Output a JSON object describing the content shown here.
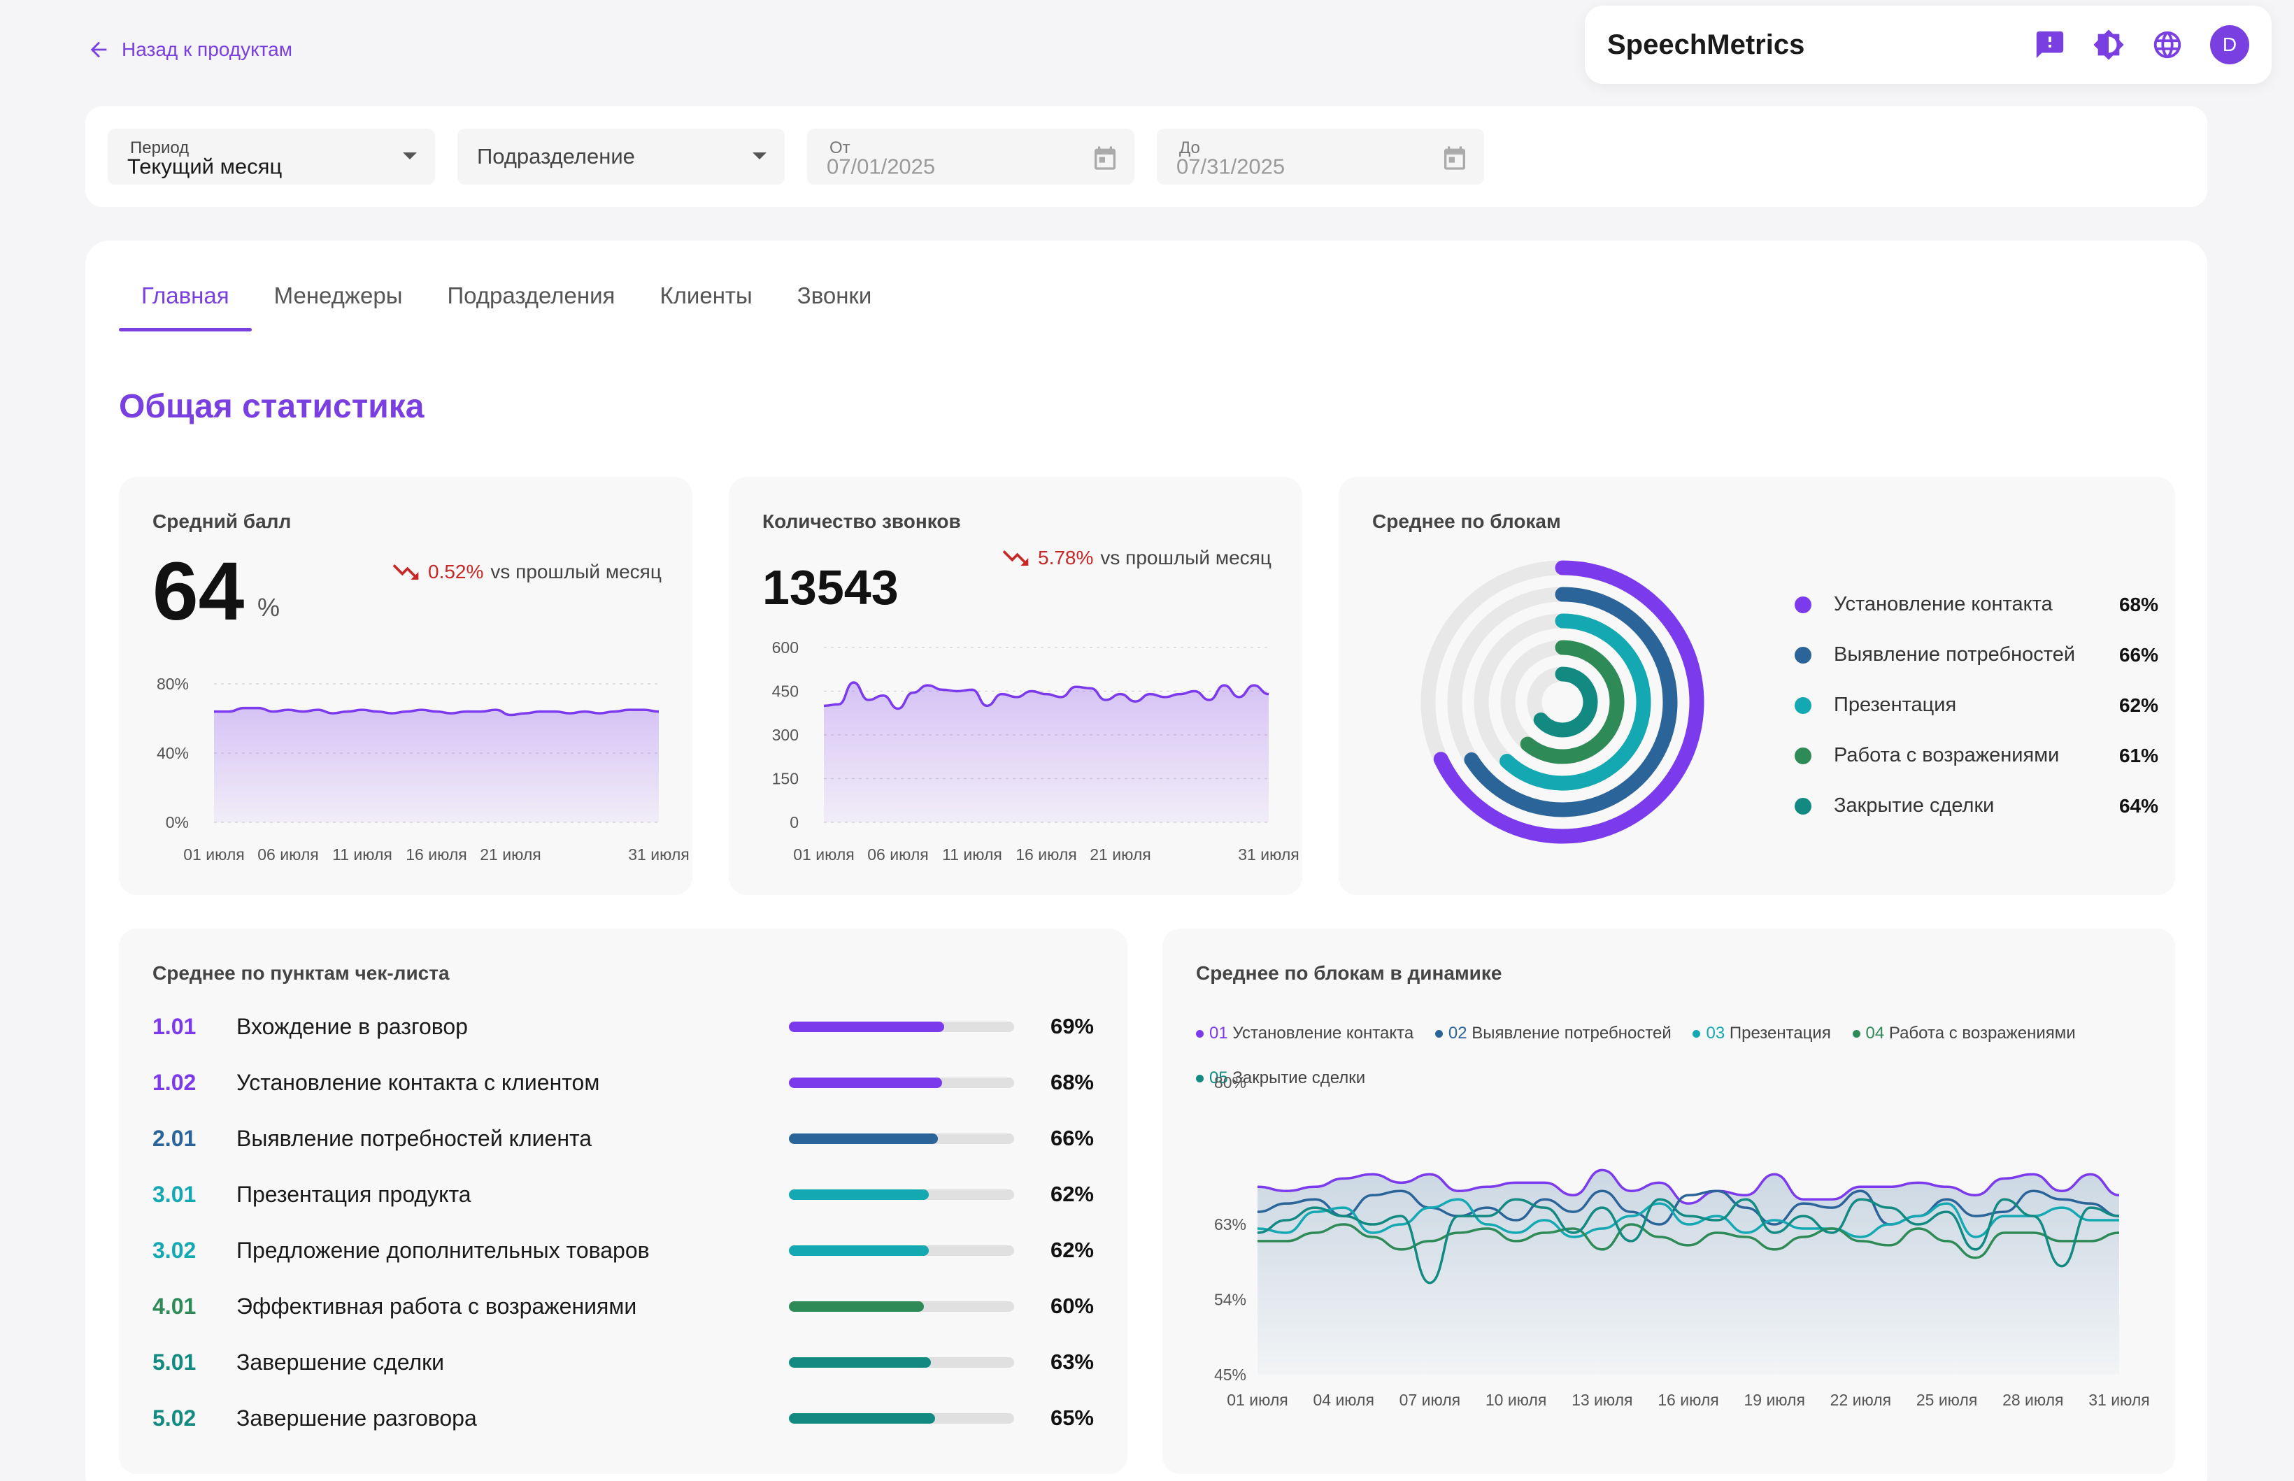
{
  "header": {
    "back_label": "Назад к продуктам",
    "brand": "SpeechMetrics",
    "icons": [
      "feedback-icon",
      "theme-icon",
      "language-icon"
    ],
    "avatar_letter": "D"
  },
  "filters": {
    "period_label": "Период",
    "period_value": "Текущий месяц",
    "division_value": "Подразделение",
    "from_label": "От",
    "from_value": "07/01/2025",
    "to_label": "До",
    "to_value": "07/31/2025"
  },
  "tabs": [
    "Главная",
    "Менеджеры",
    "Подразделения",
    "Клиенты",
    "Звонки"
  ],
  "active_tab": "Главная",
  "section_title": "Общая статистика",
  "colors": {
    "accent": "#7a3fe0",
    "block1": "#7c3aed",
    "block2": "#2b6499",
    "block3": "#13a8b2",
    "block4": "#2e8b57",
    "block5": "#128a82",
    "negative": "#c62828"
  },
  "avg_score": {
    "title": "Средний балл",
    "value": "64",
    "unit": "%",
    "trend_pct": "0.52%",
    "trend_text": "vs прошлый месяц"
  },
  "calls_count": {
    "title": "Количество звонков",
    "value": "13543",
    "trend_pct": "5.78%",
    "trend_text": "vs прошлый месяц"
  },
  "blocks_avg": {
    "title": "Среднее по блокам",
    "items": [
      {
        "name": "Установление контакта",
        "value": "68%"
      },
      {
        "name": "Выявление потребностей",
        "value": "66%"
      },
      {
        "name": "Презентация",
        "value": "62%"
      },
      {
        "name": "Работа с возражениями",
        "value": "61%"
      },
      {
        "name": "Закрытие сделки",
        "value": "64%"
      }
    ]
  },
  "checklist": {
    "title": "Среднее по пунктам чек-листа",
    "items": [
      {
        "code": "1.01",
        "name": "Вхождение в разговор",
        "value": "69%",
        "fill": 0.69,
        "color": "#7c3aed"
      },
      {
        "code": "1.02",
        "name": "Установление контакта с клиентом",
        "value": "68%",
        "fill": 0.68,
        "color": "#7c3aed"
      },
      {
        "code": "2.01",
        "name": "Выявление потребностей клиента",
        "value": "66%",
        "fill": 0.66,
        "color": "#2b6499"
      },
      {
        "code": "3.01",
        "name": "Презентация продукта",
        "value": "62%",
        "fill": 0.62,
        "color": "#13a8b2"
      },
      {
        "code": "3.02",
        "name": "Предложение дополнительных товаров",
        "value": "62%",
        "fill": 0.62,
        "color": "#13a8b2"
      },
      {
        "code": "4.01",
        "name": "Эффективная работа с возражениями",
        "value": "60%",
        "fill": 0.6,
        "color": "#2e8b57"
      },
      {
        "code": "5.01",
        "name": "Завершение сделки",
        "value": "63%",
        "fill": 0.63,
        "color": "#128a82"
      },
      {
        "code": "5.02",
        "name": "Завершение разговора",
        "value": "65%",
        "fill": 0.65,
        "color": "#128a82"
      }
    ]
  },
  "dynamics": {
    "title": "Среднее по блокам в динамике",
    "legend": [
      {
        "num": "01",
        "name": "Установление контакта"
      },
      {
        "num": "02",
        "name": "Выявление потребностей"
      },
      {
        "num": "03",
        "name": "Презентация"
      },
      {
        "num": "04",
        "name": "Работа с возражениями"
      },
      {
        "num": "05",
        "name": "Закрытие сделки"
      }
    ]
  },
  "chart_data": [
    {
      "type": "area",
      "title": "Средний балл",
      "x": [
        "01 июля",
        "02 июля",
        "03 июля",
        "04 июля",
        "05 июля",
        "06 июля",
        "07 июля",
        "08 июля",
        "09 июля",
        "10 июля",
        "11 июля",
        "12 июля",
        "13 июля",
        "14 июля",
        "15 июля",
        "16 июля",
        "17 июля",
        "18 июля",
        "19 июля",
        "20 июля",
        "21 июля",
        "22 июля",
        "23 июля",
        "24 июля",
        "25 июля",
        "26 июля",
        "27 июля",
        "28 июля",
        "29 июля",
        "30 июля",
        "31 июля"
      ],
      "x_ticks": [
        "01 июля",
        "06 июля",
        "11 июля",
        "16 июля",
        "21 июля",
        "31 июля"
      ],
      "y_ticks": [
        "0%",
        "40%",
        "80%"
      ],
      "ylim": [
        0,
        80
      ],
      "values": [
        64,
        64,
        66,
        66,
        64,
        65,
        64,
        65,
        63,
        64,
        65,
        64,
        63,
        64,
        65,
        64,
        63,
        64,
        64,
        65,
        62,
        63,
        64,
        64,
        63,
        64,
        63,
        64,
        65,
        65,
        64
      ]
    },
    {
      "type": "area",
      "title": "Количество звонков",
      "x": [
        "01 июля",
        "02 июля",
        "03 июля",
        "04 июля",
        "05 июля",
        "06 июля",
        "07 июля",
        "08 июля",
        "09 июля",
        "10 июля",
        "11 июля",
        "12 июля",
        "13 июля",
        "14 июля",
        "15 июля",
        "16 июля",
        "17 июля",
        "18 июля",
        "19 июля",
        "20 июля",
        "21 июля",
        "22 июля",
        "23 июля",
        "24 июля",
        "25 июля",
        "26 июля",
        "27 июля",
        "28 июля",
        "29 июля",
        "30 июля",
        "31 июля"
      ],
      "x_ticks": [
        "01 июля",
        "06 июля",
        "11 июля",
        "16 июля",
        "21 июля",
        "31 июля"
      ],
      "y_ticks": [
        "0",
        "150",
        "300",
        "450",
        "600"
      ],
      "ylim": [
        0,
        600
      ],
      "values": [
        400,
        405,
        480,
        420,
        435,
        390,
        445,
        470,
        455,
        450,
        455,
        400,
        440,
        430,
        450,
        440,
        430,
        465,
        460,
        420,
        440,
        415,
        440,
        430,
        440,
        450,
        420,
        470,
        430,
        470,
        440
      ]
    },
    {
      "type": "radial-bar",
      "title": "Среднее по блокам",
      "categories": [
        "Установление контакта",
        "Выявление потребностей",
        "Презентация",
        "Работа с возражениями",
        "Закрытие сделки"
      ],
      "values": [
        68,
        66,
        62,
        61,
        64
      ]
    },
    {
      "type": "line",
      "title": "Среднее по блокам в динамике",
      "x": [
        "01 июля",
        "02 июля",
        "03 июля",
        "04 июля",
        "05 июля",
        "06 июля",
        "07 июля",
        "08 июля",
        "09 июля",
        "10 июля",
        "11 июля",
        "12 июля",
        "13 июля",
        "14 июля",
        "15 июля",
        "16 июля",
        "17 июля",
        "18 июля",
        "19 июля",
        "20 июля",
        "21 июля",
        "22 июля",
        "23 июля",
        "24 июля",
        "25 июля",
        "26 июля",
        "27 июля",
        "28 июля",
        "29 июля",
        "30 июля",
        "31 июля"
      ],
      "x_ticks": [
        "01 июля",
        "04 июля",
        "07 июля",
        "10 июля",
        "13 июля",
        "16 июля",
        "19 июля",
        "22 июля",
        "25 июля",
        "28 июля",
        "31 июля"
      ],
      "y_ticks": [
        "45%",
        "54%",
        "63%",
        "80%"
      ],
      "ylim": [
        45,
        80
      ],
      "series": [
        {
          "name": "01 Установление контакта",
          "values": [
            67.5,
            67,
            67.5,
            68.5,
            69,
            68,
            69,
            67,
            67.5,
            68,
            68,
            66.5,
            69.5,
            67,
            68,
            65.5,
            67,
            66.5,
            69,
            66,
            66,
            67.5,
            67.5,
            68,
            67.5,
            66.5,
            68.5,
            69,
            67,
            69,
            66.5
          ]
        },
        {
          "name": "02 Выявление потребностей",
          "values": [
            64.5,
            65.5,
            66,
            64,
            66.5,
            67,
            65,
            64,
            65,
            63.5,
            66,
            64.5,
            67,
            64.5,
            63,
            66.5,
            67,
            65,
            63,
            65.5,
            65,
            67,
            63,
            64,
            66,
            64,
            64.5,
            67,
            66,
            65.5,
            64
          ]
        },
        {
          "name": "03 Презентация",
          "values": [
            62.5,
            62,
            64.5,
            65,
            62,
            63,
            65,
            66,
            63,
            62,
            63.5,
            61.5,
            62.5,
            64,
            65.5,
            63,
            64,
            62,
            63.5,
            62.5,
            62.5,
            61.5,
            63,
            64,
            65.5,
            61.5,
            64,
            64,
            65,
            63.5,
            63.5
          ]
        },
        {
          "name": "04 Работа с возражениями",
          "values": [
            61,
            61,
            62,
            63,
            61.5,
            60,
            61,
            62,
            62.5,
            61,
            62,
            62.5,
            60,
            63,
            61.5,
            60.5,
            62,
            61.5,
            60,
            61.5,
            62.5,
            61,
            60.5,
            62.5,
            61,
            59,
            62,
            62,
            61,
            61,
            62
          ]
        },
        {
          "name": "05 Закрытие сделки",
          "values": [
            62,
            63.5,
            65,
            64,
            63,
            64,
            56,
            64,
            64,
            66,
            65,
            62,
            65,
            61,
            66,
            64,
            63.5,
            66,
            62,
            64,
            62,
            66,
            65,
            63,
            64.5,
            60,
            66,
            64,
            58,
            65,
            64
          ]
        }
      ]
    }
  ]
}
